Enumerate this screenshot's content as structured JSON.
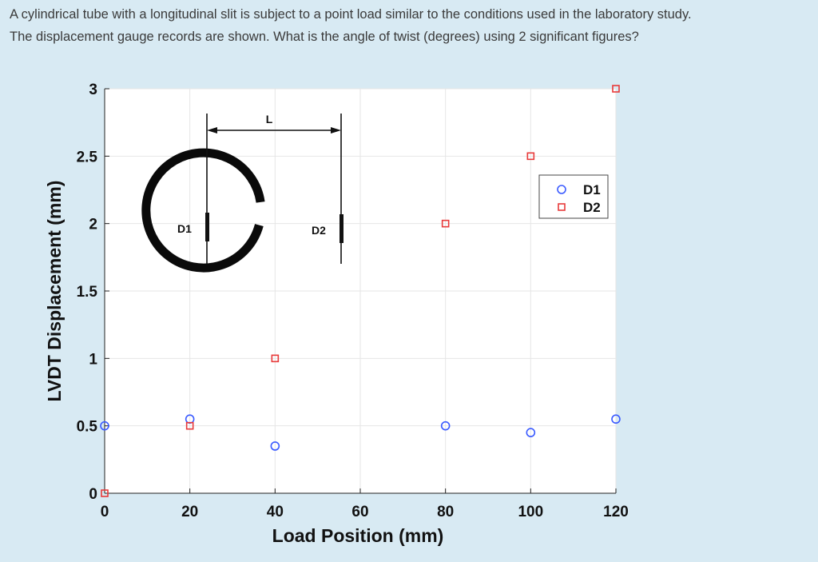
{
  "question": {
    "line1": "A cylindrical tube with a longitudinal slit is subject to a point load similar to the conditions used in the laboratory study.",
    "line2": "The displacement gauge records are shown. What is the angle of twist (degrees) using 2 significant figures?"
  },
  "colors": {
    "d1": "#3b5bff",
    "d2": "#e83a3a",
    "plot_bg": "#ffffff",
    "grid": "#e6e6e6"
  },
  "chart_data": {
    "type": "scatter",
    "xlabel": "Load Position (mm)",
    "ylabel": "LVDT Displacement (mm)",
    "xlim": [
      0,
      120
    ],
    "ylim": [
      0,
      3
    ],
    "xticks": [
      0,
      20,
      40,
      60,
      80,
      100,
      120
    ],
    "yticks": [
      0,
      0.5,
      1,
      1.5,
      2,
      2.5,
      3
    ],
    "xtick_labels": [
      "0",
      "20",
      "40",
      "60",
      "80",
      "100",
      "120"
    ],
    "ytick_labels": [
      "0",
      "0.5",
      "1",
      "1.5",
      "2",
      "2.5",
      "3"
    ],
    "grid": true,
    "legend_position": "top-right",
    "series": [
      {
        "name": "D1",
        "marker": "circle",
        "x": [
          0,
          20,
          40,
          80,
          100,
          120
        ],
        "y": [
          0.5,
          0.55,
          0.35,
          0.5,
          0.45,
          0.55
        ]
      },
      {
        "name": "D2",
        "marker": "square",
        "x": [
          0,
          20,
          40,
          80,
          100,
          120
        ],
        "y": [
          0,
          0.5,
          1.0,
          2.0,
          2.5,
          3.0
        ]
      }
    ],
    "inset": {
      "dimension_label": "L",
      "gauge1_label": "D1",
      "gauge2_label": "D2"
    }
  }
}
